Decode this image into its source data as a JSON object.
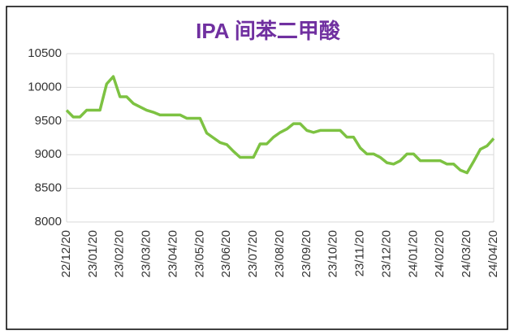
{
  "chart_data": {
    "type": "line",
    "title": "IPA 间苯二甲酸",
    "categories": [
      "22/12/20",
      null,
      null,
      null,
      "23/01/20",
      null,
      null,
      null,
      "23/02/20",
      null,
      null,
      null,
      "23/03/20",
      null,
      null,
      null,
      "23/04/20",
      null,
      null,
      null,
      "23/05/20",
      null,
      null,
      null,
      "23/06/20",
      null,
      null,
      null,
      "23/07/20",
      null,
      null,
      null,
      "23/08/20",
      null,
      null,
      null,
      "23/09/20",
      null,
      null,
      null,
      "23/10/20",
      null,
      null,
      null,
      "23/11/20",
      null,
      null,
      null,
      "23/12/20",
      null,
      null,
      null,
      "24/01/20",
      null,
      null,
      null,
      "24/02/20",
      null,
      null,
      null,
      "24/03/20",
      null,
      null,
      null,
      "24/04/20"
    ],
    "values": [
      9660,
      9560,
      9560,
      9660,
      9660,
      9660,
      10050,
      10160,
      9860,
      9860,
      9760,
      9710,
      9660,
      9630,
      9590,
      9590,
      9590,
      9590,
      9540,
      9540,
      9540,
      9320,
      9250,
      9180,
      9150,
      9050,
      8960,
      8960,
      8960,
      9160,
      9160,
      9260,
      9330,
      9380,
      9460,
      9460,
      9360,
      9330,
      9360,
      9360,
      9360,
      9360,
      9260,
      9260,
      9100,
      9010,
      9010,
      8960,
      8880,
      8860,
      8910,
      9010,
      9010,
      8910,
      8910,
      8910,
      8910,
      8860,
      8860,
      8770,
      8730,
      8900,
      9080,
      9130,
      9240
    ],
    "color": "#7dc242",
    "ylim": [
      8000,
      10500
    ],
    "yticks": [
      8000,
      8500,
      9000,
      9500,
      10000,
      10500
    ],
    "grid": true
  }
}
